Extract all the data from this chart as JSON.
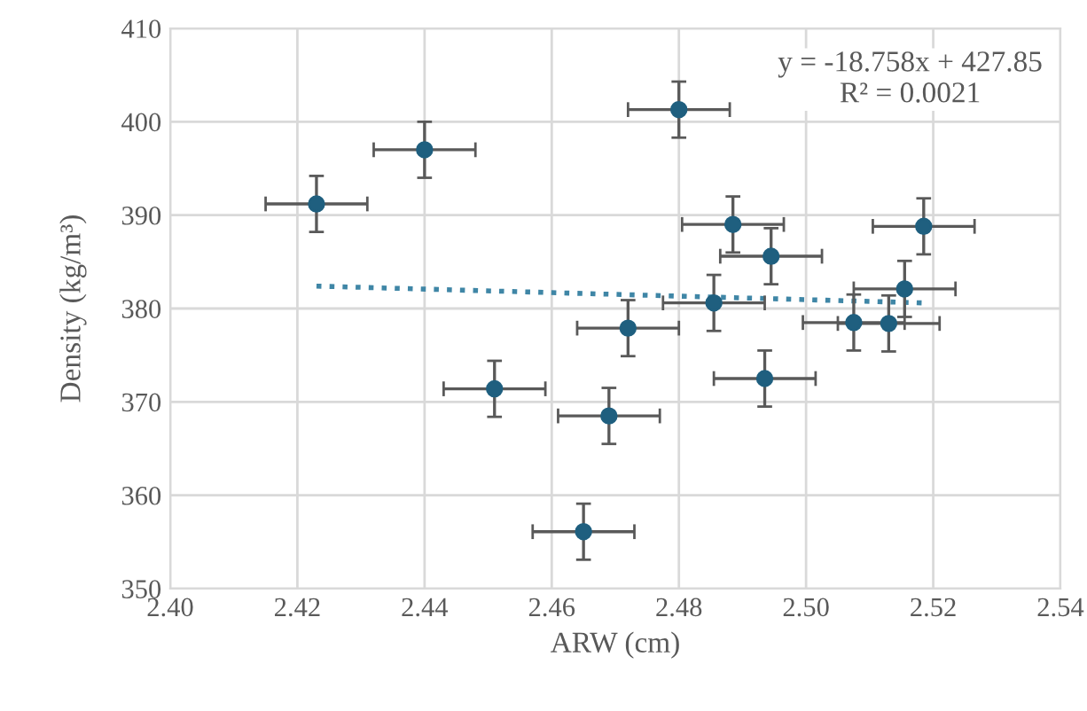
{
  "chart_data": {
    "type": "scatter",
    "xlabel": "ARW (cm)",
    "ylabel": "Density (kg/m³)",
    "xlim": [
      2.4,
      2.54
    ],
    "xticks": [
      {
        "value": 2.4,
        "label": "2.40"
      },
      {
        "value": 2.42,
        "label": "2.42"
      },
      {
        "value": 2.44,
        "label": "2.44"
      },
      {
        "value": 2.46,
        "label": "2.46"
      },
      {
        "value": 2.48,
        "label": "2.48"
      },
      {
        "value": 2.5,
        "label": "2.50"
      },
      {
        "value": 2.52,
        "label": "2.52"
      },
      {
        "value": 2.54,
        "label": "2.54"
      }
    ],
    "ylim": [
      350,
      410
    ],
    "yticks": [
      350,
      360,
      370,
      380,
      390,
      400,
      410
    ],
    "grid": true,
    "annotations": [
      "y = -18.758x + 427.85",
      "R² = 0.0021"
    ],
    "series": [
      {
        "marker": "circle",
        "color": "#1f5f7f",
        "x": [
          2.423,
          2.44,
          2.451,
          2.465,
          2.469,
          2.472,
          2.48,
          2.4885,
          2.4855,
          2.4945,
          2.4935,
          2.5075,
          2.513,
          2.5155,
          2.5185
        ],
        "values": [
          391.2,
          397.0,
          371.4,
          356.1,
          368.5,
          377.9,
          401.3,
          389.0,
          380.6,
          385.6,
          372.5,
          378.5,
          378.4,
          382.1,
          388.8
        ],
        "errors": [
          3,
          3,
          3,
          3,
          3,
          3,
          3,
          3,
          3,
          3,
          3,
          3,
          3,
          3,
          3
        ],
        "xerrors": [
          0.008,
          0.008,
          0.008,
          0.008,
          0.008,
          0.008,
          0.008,
          0.008,
          0.008,
          0.008,
          0.008,
          0.008,
          0.008,
          0.008,
          0.008
        ]
      },
      {
        "type": "line",
        "color": "#3f86a6",
        "line_style": "dotted",
        "x": [
          2.423,
          2.5185
        ],
        "values": [
          382.4,
          380.6
        ]
      }
    ]
  }
}
